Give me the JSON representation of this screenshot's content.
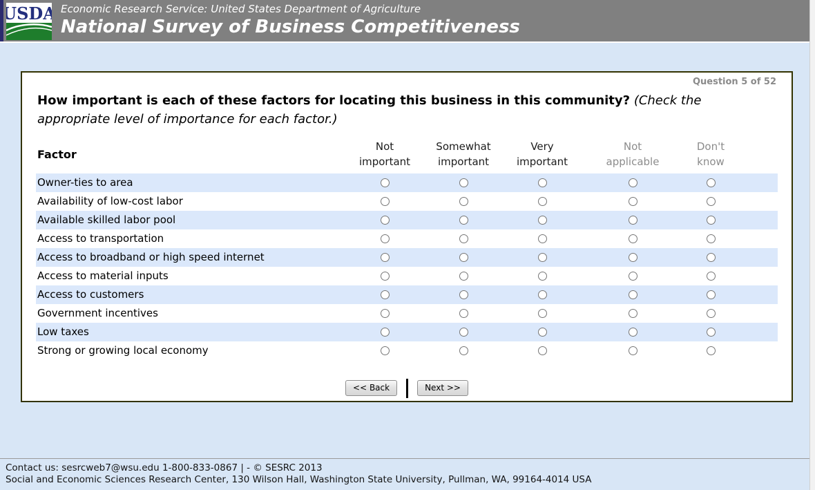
{
  "header": {
    "logo_text": "USDA",
    "agency_line": "Economic Research Service: United States Department of Agriculture",
    "survey_title": "National Survey of Business Competitiveness"
  },
  "question": {
    "counter": "Question 5 of 52",
    "title_bold": "How important is each of these factors for locating this business in this community?",
    "title_italic": "(Check the appropriate level of importance for each factor.)"
  },
  "table": {
    "factor_header": "Factor",
    "columns": [
      {
        "line1": "Not",
        "line2": "important",
        "muted": false
      },
      {
        "line1": "Somewhat",
        "line2": "important",
        "muted": false
      },
      {
        "line1": "Very",
        "line2": "important",
        "muted": false
      },
      {
        "line1": "Not",
        "line2": "applicable",
        "muted": true
      },
      {
        "line1": "Don't",
        "line2": "know",
        "muted": true
      }
    ],
    "rows": [
      "Owner-ties to area",
      "Availability of low-cost labor",
      "Available skilled labor pool",
      "Access to transportation",
      "Access to broadband or high speed internet",
      "Access to material inputs",
      "Access to customers",
      "Government incentives",
      "Low taxes",
      "Strong or growing local economy"
    ],
    "selected": null
  },
  "buttons": {
    "back": "<< Back",
    "next": "Next >>"
  },
  "footer": {
    "line1": "Contact us: sesrcweb7@wsu.edu 1-800-833-0867 | - © SESRC 2013",
    "line2": "Social and Economic Sciences Research Center, 130 Wilson Hall, Washington State University, Pullman, WA, 99164-4014 USA"
  },
  "colors": {
    "banner_bg": "#808080",
    "banner_text": "#ffffff",
    "page_bg": "#d8e6f6",
    "row_stripe": "#dbe8fb",
    "box_border": "#333300",
    "muted_header": "#8c8c8c",
    "logo_navy": "#232f7e",
    "logo_green": "#1e7d2c"
  }
}
